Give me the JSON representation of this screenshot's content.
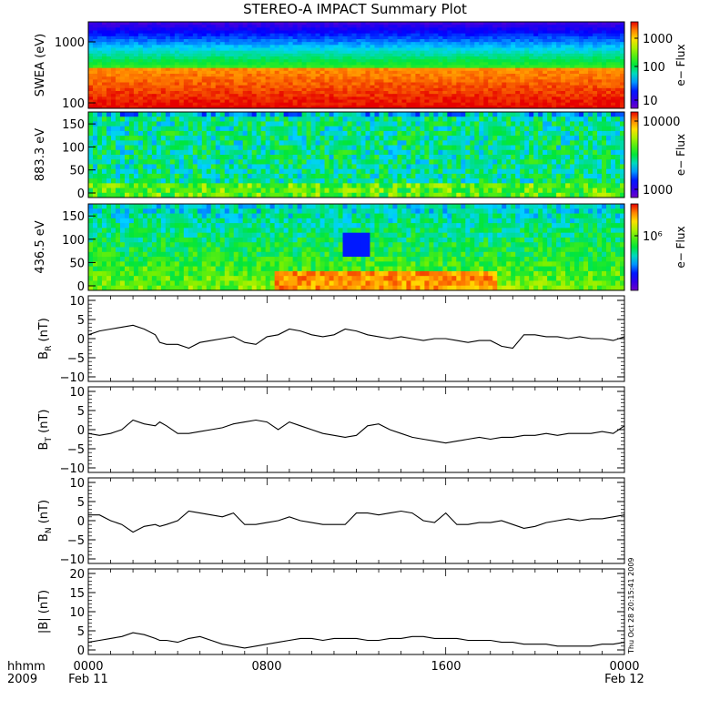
{
  "title": "STEREO-A IMPACT Summary Plot",
  "footer": {
    "row1_label": "hhmm",
    "row2_label": "2009",
    "ticks": [
      {
        "time": "0000",
        "date": "Feb 11"
      },
      {
        "time": "0800",
        "date": ""
      },
      {
        "time": "1600",
        "date": ""
      },
      {
        "time": "0000",
        "date": "Feb 12"
      }
    ],
    "stamp": "Thu Oct 28 20:15:41 2009"
  },
  "chart_data": [
    {
      "type": "heatmap",
      "ylabel": "SWEA (eV)",
      "yscale": "log",
      "yticks": [
        "1000",
        "100"
      ],
      "ylim": [
        90,
        2000
      ],
      "colorbar": {
        "label": "e− Flux",
        "ticks": [
          "1000",
          "100",
          "10"
        ]
      },
      "description_bands_ev": [
        100,
        200,
        400,
        800,
        1500
      ]
    },
    {
      "type": "heatmap",
      "ylabel": "883.3 eV",
      "yticks": [
        "150",
        "100",
        "50",
        "0"
      ],
      "ylim": [
        0,
        170
      ],
      "colorbar": {
        "label": "e− Flux",
        "ticks": [
          "10000",
          "1000"
        ]
      }
    },
    {
      "type": "heatmap",
      "ylabel": "436.5 eV",
      "yticks": [
        "150",
        "100",
        "50",
        "0"
      ],
      "ylim": [
        0,
        170
      ],
      "colorbar": {
        "label": "e− Flux",
        "ticks": [
          "10⁶"
        ]
      }
    },
    {
      "type": "line",
      "ylabel": "B_R (nT)",
      "ylabel_main": "B",
      "ylabel_sub": "R",
      "ylabel_unit": "(nT)",
      "ylim": [
        -10,
        10
      ],
      "yticks": [
        "10",
        "5",
        "0",
        "−5",
        "−10"
      ],
      "x_hours": [
        0,
        0.5,
        1,
        1.5,
        2,
        2.5,
        3,
        3.2,
        3.5,
        4,
        4.5,
        5,
        5.5,
        6,
        6.5,
        7,
        7.5,
        8,
        8.5,
        9,
        9.5,
        10,
        10.5,
        11,
        11.5,
        12,
        12.5,
        13,
        13.5,
        14,
        14.5,
        15,
        15.5,
        16,
        16.5,
        17,
        17.5,
        18,
        18.5,
        19,
        19.5,
        20,
        20.5,
        21,
        21.5,
        22,
        22.5,
        23,
        23.5,
        24
      ],
      "y": [
        1,
        2,
        2.5,
        3,
        3.5,
        2.5,
        1,
        -1,
        -1.5,
        -1.5,
        -2.5,
        -1,
        -0.5,
        0,
        0.5,
        -1,
        -1.5,
        0.5,
        1,
        2.5,
        2,
        1,
        0.5,
        1,
        2.5,
        2,
        1,
        0.5,
        0,
        0.5,
        0,
        -0.5,
        0,
        0,
        -0.5,
        -1,
        -0.5,
        -0.5,
        -2,
        -2.5,
        1,
        1,
        0.5,
        0.5,
        0,
        0.5,
        0,
        0,
        -0.5,
        0.5
      ]
    },
    {
      "type": "line",
      "ylabel": "B_T (nT)",
      "ylabel_main": "B",
      "ylabel_sub": "T",
      "ylabel_unit": "(nT)",
      "ylim": [
        -10,
        10
      ],
      "yticks": [
        "10",
        "5",
        "0",
        "−5",
        "−10"
      ],
      "x_hours": [
        0,
        0.5,
        1,
        1.5,
        2,
        2.5,
        3,
        3.2,
        3.5,
        4,
        4.5,
        5,
        5.5,
        6,
        6.5,
        7,
        7.5,
        8,
        8.5,
        9,
        9.5,
        10,
        10.5,
        11,
        11.5,
        12,
        12.5,
        13,
        13.5,
        14,
        14.5,
        15,
        15.5,
        16,
        16.5,
        17,
        17.5,
        18,
        18.5,
        19,
        19.5,
        20,
        20.5,
        21,
        21.5,
        22,
        22.5,
        23,
        23.5,
        24
      ],
      "y": [
        -1,
        -1.5,
        -1,
        0,
        2.5,
        1.5,
        1,
        2,
        1,
        -1,
        -1,
        -0.5,
        0,
        0.5,
        1.5,
        2,
        2.5,
        2,
        0,
        2,
        1,
        0,
        -1,
        -1.5,
        -2,
        -1.5,
        1,
        1.5,
        0,
        -1,
        -2,
        -2.5,
        -3,
        -3.5,
        -3,
        -2.5,
        -2,
        -2.5,
        -2,
        -2,
        -1.5,
        -1.5,
        -1,
        -1.5,
        -1,
        -1,
        -1,
        -0.5,
        -1,
        1
      ]
    },
    {
      "type": "line",
      "ylabel": "B_N (nT)",
      "ylabel_main": "B",
      "ylabel_sub": "N",
      "ylabel_unit": "(nT)",
      "ylim": [
        -10,
        10
      ],
      "yticks": [
        "10",
        "5",
        "0",
        "−5",
        "−10"
      ],
      "x_hours": [
        0,
        0.5,
        1,
        1.5,
        2,
        2.5,
        3,
        3.2,
        3.5,
        4,
        4.5,
        5,
        5.5,
        6,
        6.5,
        7,
        7.5,
        8,
        8.5,
        9,
        9.5,
        10,
        10.5,
        11,
        11.5,
        12,
        12.5,
        13,
        13.5,
        14,
        14.5,
        15,
        15.5,
        16,
        16.5,
        17,
        17.5,
        18,
        18.5,
        19,
        19.5,
        20,
        20.5,
        21,
        21.5,
        22,
        22.5,
        23,
        23.5,
        24
      ],
      "y": [
        1.5,
        1.5,
        0,
        -1,
        -3,
        -1.5,
        -1,
        -1.5,
        -1,
        0,
        2.5,
        2,
        1.5,
        1,
        2,
        -1,
        -1,
        -0.5,
        0,
        1,
        0,
        -0.5,
        -1,
        -1,
        -1,
        2,
        2,
        1.5,
        2,
        2.5,
        2,
        0,
        -0.5,
        2,
        -1,
        -1,
        -0.5,
        -0.5,
        0,
        -1,
        -2,
        -1.5,
        -0.5,
        0,
        0.5,
        0,
        0.5,
        0.5,
        1,
        1.5
      ]
    },
    {
      "type": "line",
      "ylabel": "|B| (nT)",
      "ylabel_main": "|B|",
      "ylabel_sub": "",
      "ylabel_unit": "(nT)",
      "ylim": [
        0,
        20
      ],
      "yticks": [
        "20",
        "15",
        "10",
        "5",
        "0"
      ],
      "x_hours": [
        0,
        0.5,
        1,
        1.5,
        2,
        2.5,
        3,
        3.2,
        3.5,
        4,
        4.5,
        5,
        5.5,
        6,
        6.5,
        7,
        7.5,
        8,
        8.5,
        9,
        9.5,
        10,
        10.5,
        11,
        11.5,
        12,
        12.5,
        13,
        13.5,
        14,
        14.5,
        15,
        15.5,
        16,
        16.5,
        17,
        17.5,
        18,
        18.5,
        19,
        19.5,
        20,
        20.5,
        21,
        21.5,
        22,
        22.5,
        23,
        23.5,
        24
      ],
      "y": [
        2,
        2.5,
        3,
        3.5,
        4.5,
        4,
        3,
        2.5,
        2.5,
        2,
        3,
        3.5,
        2.5,
        1.5,
        1,
        0.5,
        1,
        1.5,
        2,
        2.5,
        3,
        3,
        2.5,
        3,
        3,
        3,
        2.5,
        2.5,
        3,
        3,
        3.5,
        3.5,
        3,
        3,
        3,
        2.5,
        2.5,
        2.5,
        2,
        2,
        1.5,
        1.5,
        1.5,
        1,
        1,
        1,
        1,
        1.5,
        1.5,
        2
      ]
    }
  ]
}
